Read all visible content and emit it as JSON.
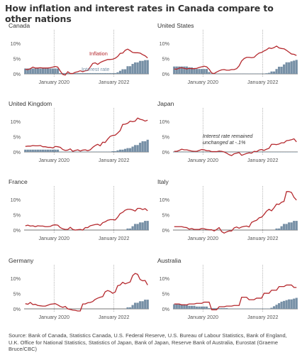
{
  "title": "How inflation and interest rates in Canada compare to other nations",
  "source": "Source: Bank of Canada, Statistics Canada, U.S. Federal Reserve, U.S. Bureau of Labour Statistics, Bank of England, U.K. Office for National Statistics, Statistics of Japan, Bank of Japan, Reserve Bank of Australia, Eurostat (Graeme Bruce/CBC)",
  "colors": {
    "inflation": "#b5292e",
    "interest_rate": "#7790a6",
    "axis": "#999999",
    "text": "#555555"
  },
  "chart_data": [
    {
      "type": "area",
      "title": "Canada",
      "x_ticks": [
        "January 2020",
        "January 2022"
      ],
      "y_ticks": [
        "0%",
        "5%",
        "10%"
      ],
      "ylim": [
        0,
        10
      ],
      "annotations": {
        "inflation_label": "Inflation",
        "interest_label": "Interest rate"
      },
      "series": [
        {
          "name": "Inflation",
          "type": "line",
          "values": [
            1.5,
            1.4,
            1.7,
            2.2,
            1.9,
            1.9,
            2.0,
            1.9,
            1.9,
            1.9,
            2.0,
            2.2,
            2.4,
            2.2,
            0.9,
            -0.2,
            -0.4,
            0.7,
            0.1,
            0.1,
            0.5,
            0.7,
            1.0,
            0.7,
            1.0,
            1.1,
            2.2,
            3.4,
            3.6,
            3.1,
            3.7,
            4.1,
            4.4,
            4.7,
            4.7,
            4.8,
            5.1,
            5.7,
            6.7,
            6.8,
            7.7,
            8.1,
            7.6,
            7.0,
            6.9,
            6.9,
            6.8,
            6.3,
            5.9,
            5.2
          ]
        },
        {
          "name": "Interest rate",
          "type": "bar",
          "values": [
            1.75,
            1.75,
            1.75,
            1.75,
            1.75,
            1.75,
            1.75,
            1.75,
            1.75,
            1.75,
            1.75,
            1.75,
            1.75,
            1.75,
            0.25,
            0.25,
            0.25,
            0.25,
            0.25,
            0.25,
            0.25,
            0.25,
            0.25,
            0.25,
            0.25,
            0.25,
            0.25,
            0.25,
            0.25,
            0.25,
            0.25,
            0.25,
            0.25,
            0.25,
            0.25,
            0.25,
            0.25,
            0.5,
            1.0,
            1.5,
            1.5,
            2.5,
            2.5,
            3.25,
            3.75,
            3.75,
            4.25,
            4.25,
            4.5,
            4.5
          ]
        }
      ]
    },
    {
      "type": "area",
      "title": "United States",
      "x_ticks": [
        "January 2020",
        "January 2022"
      ],
      "y_ticks": [
        "0%",
        "5%",
        "10%"
      ],
      "ylim": [
        0,
        10
      ],
      "series": [
        {
          "name": "Inflation",
          "type": "line",
          "values": [
            1.6,
            1.5,
            1.9,
            2.0,
            1.8,
            1.6,
            1.8,
            1.7,
            1.7,
            1.8,
            2.1,
            2.3,
            2.5,
            2.3,
            1.5,
            0.3,
            0.1,
            0.6,
            1.0,
            1.3,
            1.4,
            1.2,
            1.2,
            1.4,
            1.4,
            1.7,
            2.6,
            4.2,
            5.0,
            5.4,
            5.4,
            5.3,
            5.4,
            6.2,
            6.8,
            7.0,
            7.5,
            7.9,
            8.5,
            8.3,
            8.6,
            9.1,
            8.5,
            8.3,
            8.2,
            7.7,
            7.1,
            6.5,
            6.4,
            6.0
          ]
        },
        {
          "name": "Interest rate",
          "type": "bar",
          "values": [
            2.4,
            2.4,
            2.4,
            2.4,
            2.4,
            2.4,
            2.1,
            2.1,
            1.9,
            1.6,
            1.6,
            1.6,
            1.6,
            1.6,
            0.6,
            0.05,
            0.05,
            0.08,
            0.09,
            0.1,
            0.09,
            0.09,
            0.09,
            0.09,
            0.09,
            0.08,
            0.07,
            0.07,
            0.06,
            0.08,
            0.1,
            0.09,
            0.08,
            0.08,
            0.08,
            0.08,
            0.08,
            0.2,
            0.33,
            0.77,
            0.77,
            1.58,
            2.33,
            2.33,
            3.08,
            3.78,
            3.78,
            4.1,
            4.33,
            4.57
          ]
        }
      ]
    },
    {
      "type": "area",
      "title": "United Kingdom",
      "x_ticks": [
        "January 2020",
        "January 2022"
      ],
      "y_ticks": [
        "0%",
        "5%",
        "10%"
      ],
      "ylim": [
        0,
        10
      ],
      "series": [
        {
          "name": "Inflation",
          "type": "line",
          "values": [
            1.8,
            1.9,
            1.9,
            2.1,
            2.0,
            2.0,
            2.1,
            1.7,
            1.7,
            1.5,
            1.5,
            1.3,
            1.8,
            1.7,
            1.5,
            0.8,
            0.5,
            0.6,
            1.0,
            0.2,
            0.5,
            0.7,
            0.3,
            0.6,
            0.7,
            0.4,
            0.7,
            1.5,
            2.1,
            2.5,
            2.0,
            3.2,
            3.1,
            4.2,
            5.1,
            5.4,
            5.5,
            6.2,
            7.0,
            9.0,
            9.1,
            9.4,
            10.1,
            9.9,
            10.1,
            11.1,
            10.7,
            10.5,
            10.1,
            10.4
          ]
        },
        {
          "name": "Interest rate",
          "type": "bar",
          "values": [
            0.75,
            0.75,
            0.75,
            0.75,
            0.75,
            0.75,
            0.75,
            0.75,
            0.75,
            0.75,
            0.75,
            0.75,
            0.75,
            0.75,
            0.1,
            0.1,
            0.1,
            0.1,
            0.1,
            0.1,
            0.1,
            0.1,
            0.1,
            0.1,
            0.1,
            0.1,
            0.1,
            0.1,
            0.1,
            0.1,
            0.1,
            0.1,
            0.1,
            0.1,
            0.1,
            0.25,
            0.25,
            0.5,
            0.75,
            0.75,
            1.0,
            1.25,
            1.25,
            1.75,
            2.25,
            2.25,
            3.0,
            3.5,
            3.5,
            4.0
          ]
        }
      ]
    },
    {
      "type": "area",
      "title": "Japan",
      "x_ticks": [
        "January 2020",
        "January 2022"
      ],
      "y_ticks": [
        "0%",
        "5%",
        "10%"
      ],
      "ylim": [
        0,
        10
      ],
      "annotations": {
        "note_line1": "Interest rate remained",
        "note_line2": "unchanged at -.1%"
      },
      "series": [
        {
          "name": "Inflation",
          "type": "line",
          "values": [
            0.2,
            0.2,
            0.5,
            0.9,
            0.7,
            0.7,
            0.5,
            0.3,
            0.2,
            0.2,
            0.5,
            0.8,
            0.7,
            0.4,
            0.4,
            0.1,
            0.1,
            0.1,
            0.3,
            0.2,
            0.0,
            -0.4,
            -0.9,
            -1.2,
            -0.6,
            -0.4,
            -0.2,
            -1.1,
            -0.8,
            -0.5,
            -0.3,
            -0.4,
            0.2,
            0.1,
            0.6,
            0.8,
            0.5,
            0.9,
            1.2,
            2.5,
            2.5,
            2.4,
            2.6,
            3.0,
            3.0,
            3.7,
            3.8,
            4.0,
            4.3,
            3.3
          ]
        },
        {
          "name": "Interest rate",
          "type": "bar",
          "values": [
            -0.1,
            -0.1,
            -0.1,
            -0.1,
            -0.1,
            -0.1,
            -0.1,
            -0.1,
            -0.1,
            -0.1,
            -0.1,
            -0.1,
            -0.1,
            -0.1,
            -0.1,
            -0.1,
            -0.1,
            -0.1,
            -0.1,
            -0.1,
            -0.1,
            -0.1,
            -0.1,
            -0.1,
            -0.1,
            -0.1,
            -0.1,
            -0.1,
            -0.1,
            -0.1,
            -0.1,
            -0.1,
            -0.1,
            -0.1,
            -0.1,
            -0.1,
            -0.1,
            -0.1,
            -0.1,
            -0.1,
            -0.1,
            -0.1,
            -0.1,
            -0.1,
            -0.1,
            -0.1,
            -0.1,
            -0.1,
            -0.1,
            -0.1
          ]
        }
      ]
    },
    {
      "type": "area",
      "title": "France",
      "x_ticks": [
        "January 2020",
        "January 2022"
      ],
      "y_ticks": [
        "0%",
        "5%",
        "10%"
      ],
      "ylim": [
        0,
        10
      ],
      "series": [
        {
          "name": "Inflation",
          "type": "line",
          "values": [
            1.4,
            1.6,
            1.3,
            1.4,
            1.1,
            1.4,
            1.3,
            1.3,
            1.1,
            1.1,
            1.2,
            1.6,
            1.7,
            1.6,
            0.8,
            0.4,
            0.2,
            0.2,
            0.9,
            0.2,
            0.0,
            0.1,
            0.2,
            0.0,
            0.8,
            0.8,
            1.4,
            1.6,
            1.8,
            1.9,
            1.5,
            2.4,
            2.7,
            3.2,
            3.4,
            3.4,
            3.3,
            4.2,
            5.4,
            5.8,
            6.5,
            6.8,
            6.8,
            6.6,
            6.2,
            7.1,
            7.1,
            6.7,
            7.0,
            6.3
          ]
        },
        {
          "name": "Interest rate",
          "type": "bar",
          "values": [
            0,
            0,
            0,
            0,
            0,
            0,
            0,
            0,
            0,
            0,
            0,
            0,
            0,
            0,
            0,
            0,
            0,
            0,
            0,
            0,
            0,
            0,
            0,
            0,
            0,
            0,
            0,
            0,
            0,
            0,
            0,
            0,
            0,
            0,
            0,
            0,
            0,
            0,
            0,
            0,
            0,
            0.5,
            0.5,
            1.25,
            2.0,
            2.0,
            2.5,
            2.5,
            3.0,
            3.0
          ]
        }
      ]
    },
    {
      "type": "area",
      "title": "Italy",
      "x_ticks": [
        "January 2020",
        "January 2022"
      ],
      "y_ticks": [
        "0%",
        "5%",
        "10%"
      ],
      "ylim": [
        0,
        10
      ],
      "series": [
        {
          "name": "Inflation",
          "type": "line",
          "values": [
            1.1,
            1.1,
            1.1,
            1.1,
            0.9,
            0.8,
            0.3,
            0.5,
            0.2,
            0.2,
            0.2,
            0.5,
            0.4,
            0.2,
            0.1,
            0.1,
            -0.3,
            0.2,
            0.8,
            -0.5,
            -1.0,
            -0.6,
            -0.3,
            -0.3,
            0.7,
            1.0,
            0.6,
            1.0,
            1.2,
            1.3,
            1.0,
            2.5,
            2.9,
            3.2,
            4.0,
            4.2,
            5.1,
            6.2,
            6.8,
            6.3,
            7.3,
            8.5,
            8.4,
            9.1,
            9.4,
            12.6,
            12.6,
            12.3,
            10.7,
            9.8
          ]
        },
        {
          "name": "Interest rate",
          "type": "bar",
          "values": [
            0,
            0,
            0,
            0,
            0,
            0,
            0,
            0,
            0,
            0,
            0,
            0,
            0,
            0,
            0,
            0,
            0,
            0,
            0,
            0,
            0,
            0,
            0,
            0,
            0,
            0,
            0,
            0,
            0,
            0,
            0,
            0,
            0,
            0,
            0,
            0,
            0,
            0,
            0,
            0,
            0,
            0.5,
            0.5,
            1.25,
            2.0,
            2.0,
            2.5,
            2.5,
            3.0,
            3.0
          ]
        }
      ]
    },
    {
      "type": "area",
      "title": "Germany",
      "x_ticks": [
        "January 2020",
        "January 2022"
      ],
      "y_ticks": [
        "0%",
        "5%",
        "10%"
      ],
      "ylim": [
        0,
        10
      ],
      "series": [
        {
          "name": "Inflation",
          "type": "line",
          "values": [
            1.7,
            1.5,
            2.1,
            1.4,
            1.5,
            1.1,
            1.0,
            0.9,
            0.9,
            1.2,
            1.5,
            1.6,
            1.7,
            1.3,
            0.8,
            0.5,
            0.8,
            0.0,
            -0.2,
            -0.4,
            -0.5,
            -0.7,
            -0.7,
            1.6,
            1.6,
            2.0,
            2.1,
            2.4,
            3.1,
            3.5,
            3.8,
            4.0,
            5.6,
            6.0,
            5.7,
            5.1,
            5.5,
            7.6,
            7.8,
            8.7,
            8.2,
            8.5,
            8.8,
            10.9,
            11.6,
            11.3,
            9.6,
            9.2,
            9.3,
            7.8
          ]
        },
        {
          "name": "Interest rate",
          "type": "bar",
          "values": [
            0,
            0,
            0,
            0,
            0,
            0,
            0,
            0,
            0,
            0,
            0,
            0,
            0,
            0,
            0,
            0,
            0,
            0,
            0,
            0,
            0,
            0,
            0,
            0,
            0,
            0,
            0,
            0,
            0,
            0,
            0,
            0,
            0,
            0,
            0,
            0,
            0,
            0,
            0,
            0,
            0,
            0.5,
            0.5,
            1.25,
            2.0,
            2.0,
            2.5,
            2.5,
            3.0,
            3.0
          ]
        }
      ]
    },
    {
      "type": "area",
      "title": "Australia",
      "x_ticks": [
        "January 2020",
        "January 2022"
      ],
      "y_ticks": [
        "0%",
        "5%",
        "10%"
      ],
      "ylim": [
        0,
        10
      ],
      "series": [
        {
          "name": "Inflation",
          "type": "line",
          "values": [
            1.6,
            1.6,
            1.6,
            1.3,
            1.3,
            1.3,
            1.6,
            1.6,
            1.6,
            1.8,
            1.8,
            1.8,
            2.2,
            2.2,
            2.2,
            -0.3,
            -0.3,
            -0.3,
            0.7,
            0.7,
            0.7,
            0.9,
            0.9,
            0.9,
            1.1,
            1.1,
            1.1,
            3.8,
            3.8,
            3.8,
            3.0,
            3.0,
            3.0,
            3.5,
            3.5,
            3.5,
            5.1,
            5.1,
            5.1,
            6.1,
            6.1,
            6.1,
            7.3,
            7.3,
            7.3,
            7.8,
            7.8,
            7.8,
            7.0,
            7.0
          ]
        },
        {
          "name": "Interest rate",
          "type": "bar",
          "values": [
            1.5,
            1.5,
            1.5,
            1.5,
            1.5,
            1.25,
            1.0,
            1.0,
            1.0,
            0.75,
            0.75,
            0.75,
            0.75,
            0.75,
            0.25,
            0.25,
            0.25,
            0.25,
            0.25,
            0.25,
            0.25,
            0.25,
            0.1,
            0.1,
            0.1,
            0.1,
            0.1,
            0.1,
            0.1,
            0.1,
            0.1,
            0.1,
            0.1,
            0.1,
            0.1,
            0.1,
            0.1,
            0.1,
            0.1,
            0.35,
            0.85,
            1.35,
            1.85,
            2.35,
            2.6,
            2.85,
            3.1,
            3.1,
            3.35,
            3.6
          ]
        }
      ]
    }
  ]
}
